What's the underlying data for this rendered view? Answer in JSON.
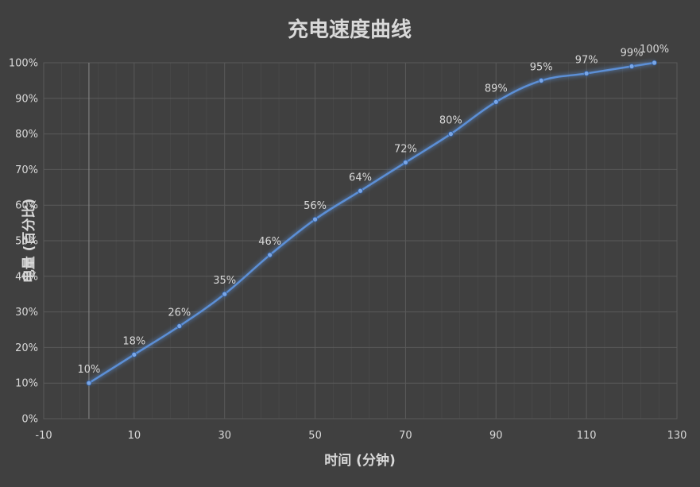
{
  "chart_data": {
    "type": "scatter",
    "title": "充电速度曲线",
    "xlabel": "时间 (分钟)",
    "ylabel": "电量 (百分比)",
    "xlim": [
      -10,
      130
    ],
    "ylim": [
      0,
      100
    ],
    "x_ticks": [
      "-10",
      "10",
      "30",
      "50",
      "70",
      "90",
      "110",
      "130"
    ],
    "y_ticks": [
      "0%",
      "10%",
      "20%",
      "30%",
      "40%",
      "50%",
      "60%",
      "70%",
      "80%",
      "90%",
      "100%"
    ],
    "grid": true,
    "line_style": "smooth-line-with-markers",
    "colors": {
      "line": "#5b8fd6",
      "marker": "#7aa6e6",
      "background": "#404040",
      "grid": "#5a5a5a",
      "text": "#d9d9d9"
    },
    "series": [
      {
        "x": [
          0,
          10,
          20,
          30,
          40,
          50,
          60,
          70,
          80,
          90,
          100,
          110,
          120,
          125
        ],
        "values": [
          10,
          18,
          26,
          35,
          46,
          56,
          64,
          72,
          80,
          89,
          95,
          97,
          99,
          100
        ],
        "labels": [
          "10%",
          "18%",
          "26%",
          "35%",
          "46%",
          "56%",
          "64%",
          "72%",
          "80%",
          "89%",
          "95%",
          "97%",
          "99%",
          "100%"
        ]
      }
    ]
  }
}
